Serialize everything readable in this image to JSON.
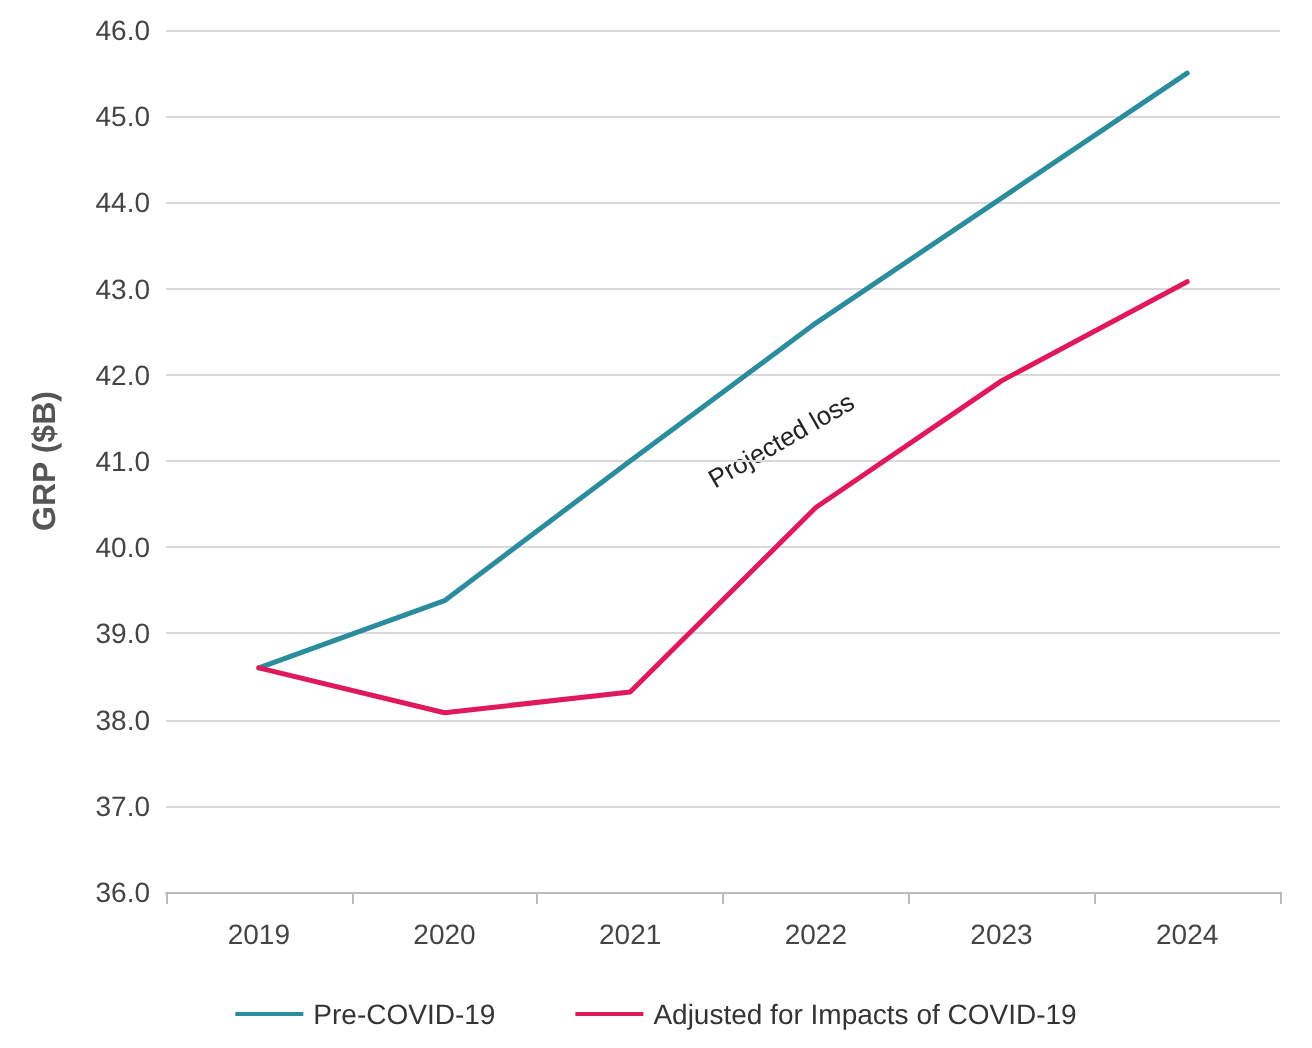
{
  "chart_data": {
    "type": "line",
    "ylabel": "GRP ($B)",
    "categories": [
      "2019",
      "2020",
      "2021",
      "2022",
      "2023",
      "2024"
    ],
    "series": [
      {
        "name": "Pre-COVID-19",
        "color": "#2a8c9c",
        "values": [
          38.6,
          39.38,
          41.0,
          42.6,
          44.05,
          45.5
        ]
      },
      {
        "name": "Adjusted for Impacts of COVID-19",
        "color": "#e0195a",
        "values": [
          38.6,
          38.08,
          38.32,
          40.46,
          41.93,
          43.08
        ]
      }
    ],
    "ylim": [
      36,
      46
    ],
    "yticks": [
      {
        "value": 36,
        "label": "36.0"
      },
      {
        "value": 37,
        "label": "37.0"
      },
      {
        "value": 38,
        "label": "38.0"
      },
      {
        "value": 39,
        "label": "39.0"
      },
      {
        "value": 40,
        "label": "40.0"
      },
      {
        "value": 41,
        "label": "41.0"
      },
      {
        "value": 42,
        "label": "42.0"
      },
      {
        "value": 43,
        "label": "43.0"
      },
      {
        "value": 44,
        "label": "44.0"
      },
      {
        "value": 45,
        "label": "45.0"
      },
      {
        "value": 46,
        "label": "46.0"
      }
    ],
    "annotations": [
      "Projected loss"
    ],
    "grid": "y",
    "legend": "bottom",
    "marker": "none",
    "line_style": "solid"
  }
}
